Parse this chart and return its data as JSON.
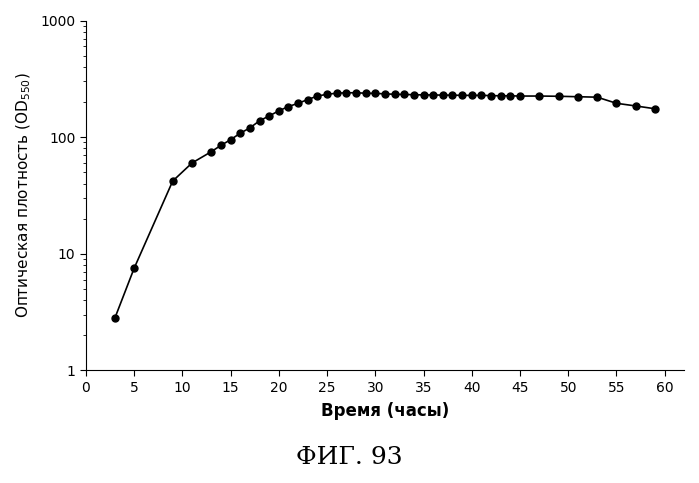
{
  "x": [
    3,
    5,
    9,
    11,
    13,
    14,
    15,
    16,
    17,
    18,
    19,
    20,
    21,
    22,
    23,
    24,
    25,
    26,
    27,
    28,
    29,
    30,
    31,
    32,
    33,
    34,
    35,
    36,
    37,
    38,
    39,
    40,
    41,
    42,
    43,
    44,
    45,
    47,
    49,
    51,
    53,
    55,
    57,
    59
  ],
  "y": [
    2.8,
    7.5,
    42,
    60,
    75,
    85,
    95,
    108,
    120,
    138,
    152,
    168,
    183,
    195,
    210,
    225,
    233,
    238,
    240,
    240,
    238,
    237,
    235,
    233,
    232,
    231,
    230,
    230,
    229,
    229,
    228,
    228,
    228,
    227,
    226,
    226,
    225,
    225,
    224,
    222,
    220,
    195,
    185,
    175
  ],
  "xlabel": "Время (часы)",
  "ylabel_main": "Оптическая плотность (OD",
  "ylabel_sub": "550",
  "ylabel_end": ")",
  "title": "ФИГ. 93",
  "xlim": [
    0,
    62
  ],
  "ylim_log": [
    1,
    1000
  ],
  "xticks": [
    0,
    5,
    10,
    15,
    20,
    25,
    30,
    35,
    40,
    45,
    50,
    55,
    60
  ],
  "line_color": "#000000",
  "marker": "o",
  "markersize": 5,
  "linewidth": 1.2
}
